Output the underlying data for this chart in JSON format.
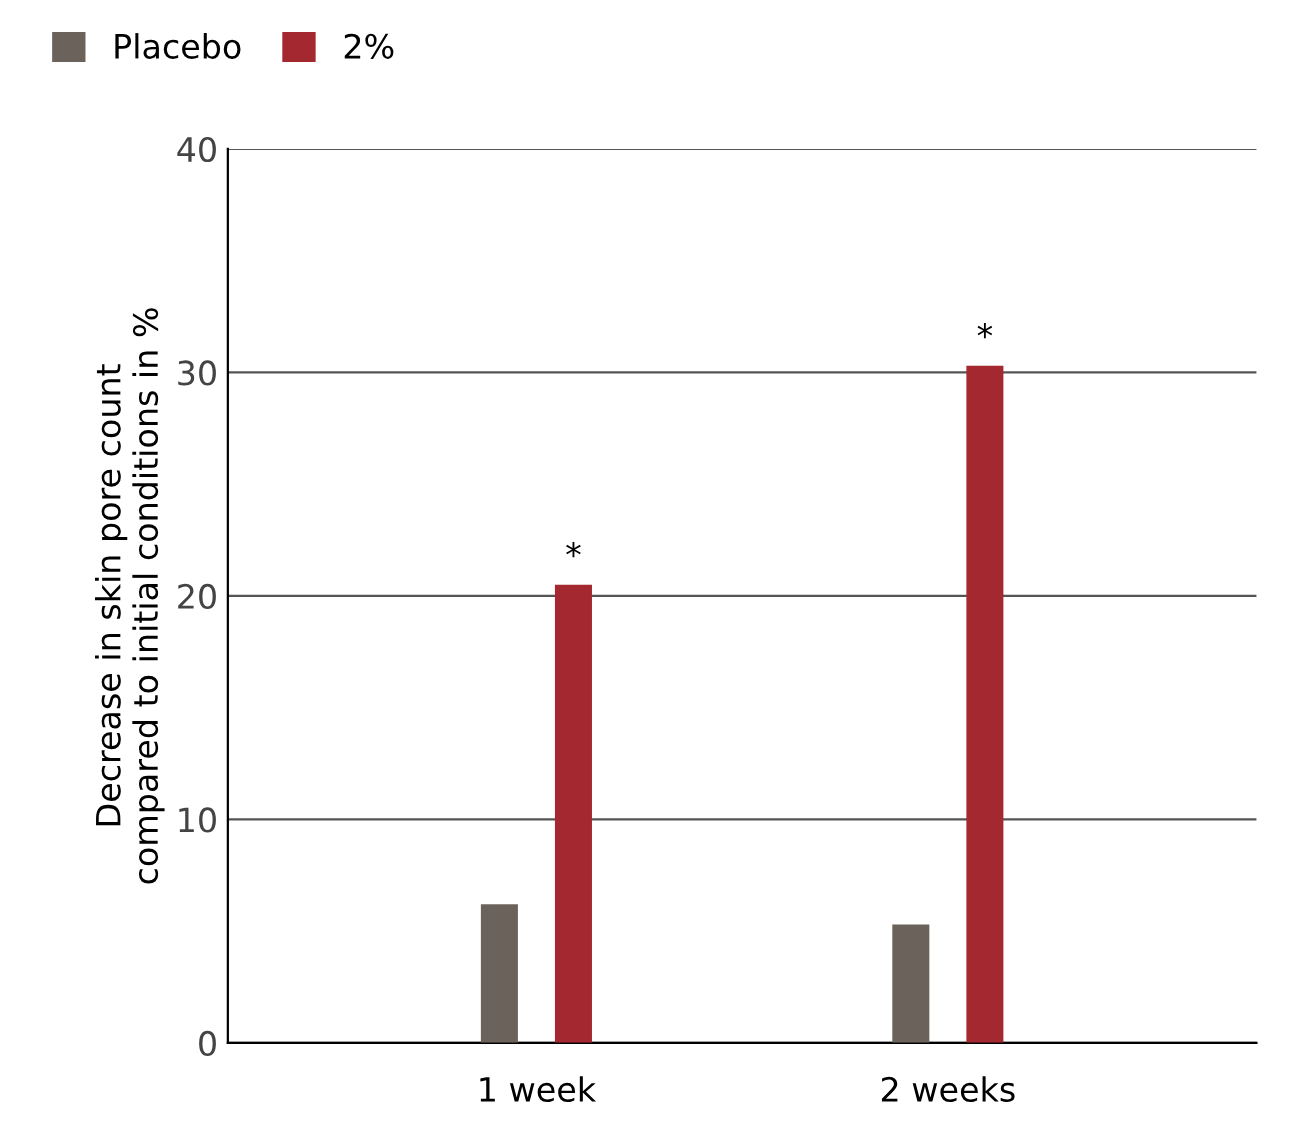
{
  "chart_data": {
    "type": "bar",
    "ylabel": "Decrease in skin pore count\ncompared to initial conditions in %",
    "categories": [
      "1 week",
      "2 weeks"
    ],
    "series": [
      {
        "name": "Placebo",
        "color": "#6b625b",
        "values": [
          6.2,
          5.3
        ]
      },
      {
        "name": "2%",
        "color": "#a3282f",
        "values": [
          20.5,
          30.3
        ]
      }
    ],
    "ylim": [
      0,
      40
    ],
    "yticks": [
      0,
      10,
      20,
      30,
      40
    ],
    "grid": "y",
    "legend": "top left",
    "annotations": [
      "*",
      "*"
    ]
  }
}
